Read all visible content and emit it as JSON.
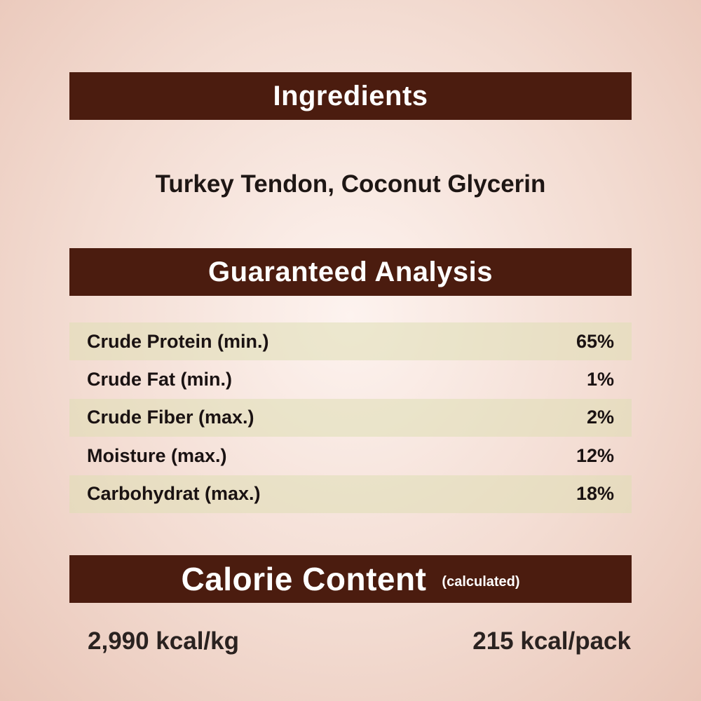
{
  "ingredients": {
    "heading": "Ingredients",
    "text": "Turkey Tendon, Coconut Glycerin"
  },
  "analysis": {
    "heading": "Guaranteed Analysis",
    "rows": [
      {
        "label": "Crude Protein (min.)",
        "value": "65%"
      },
      {
        "label": "Crude Fat (min.)",
        "value": "1%"
      },
      {
        "label": "Crude Fiber (max.)",
        "value": "2%"
      },
      {
        "label": "Moisture (max.)",
        "value": "12%"
      },
      {
        "label": "Carbohydrat (max.)",
        "value": "18%"
      }
    ]
  },
  "calorie": {
    "heading": "Calorie Content",
    "subheading": "(calculated)",
    "per_kg": "2,990 kcal/kg",
    "per_pack": "215 kcal/pack"
  },
  "colors": {
    "banner": "#4b1c0f",
    "band": "#dedeb4"
  }
}
